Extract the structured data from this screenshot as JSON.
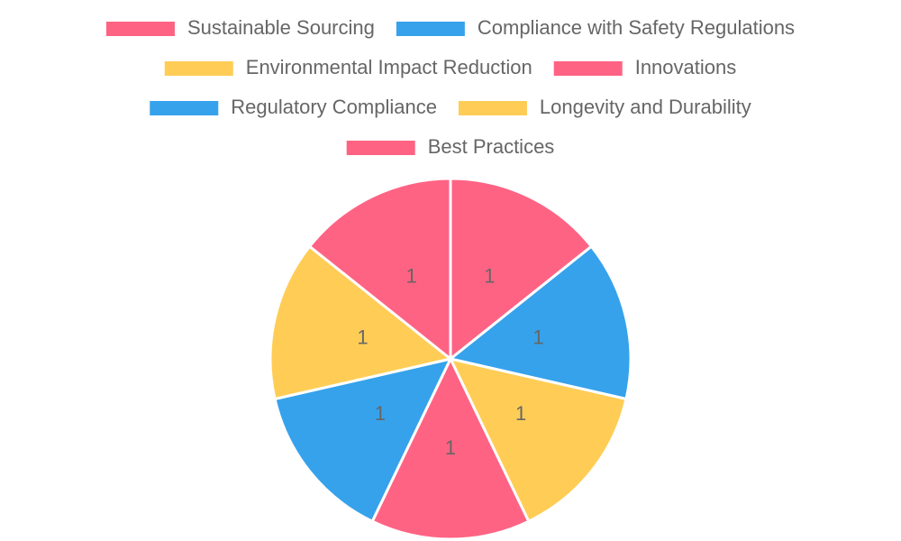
{
  "chart_data": {
    "type": "pie",
    "categories": [
      "Sustainable Sourcing",
      "Compliance with Safety Regulations",
      "Environmental Impact Reduction",
      "Innovations",
      "Regulatory Compliance",
      "Longevity and Durability",
      "Best Practices"
    ],
    "values": [
      1,
      1,
      1,
      1,
      1,
      1,
      1
    ],
    "colors": [
      "#ff6384",
      "#36a2eb",
      "#ffcd56",
      "#ff6384",
      "#36a2eb",
      "#ffcd56",
      "#ff6384"
    ],
    "legend": "top"
  }
}
